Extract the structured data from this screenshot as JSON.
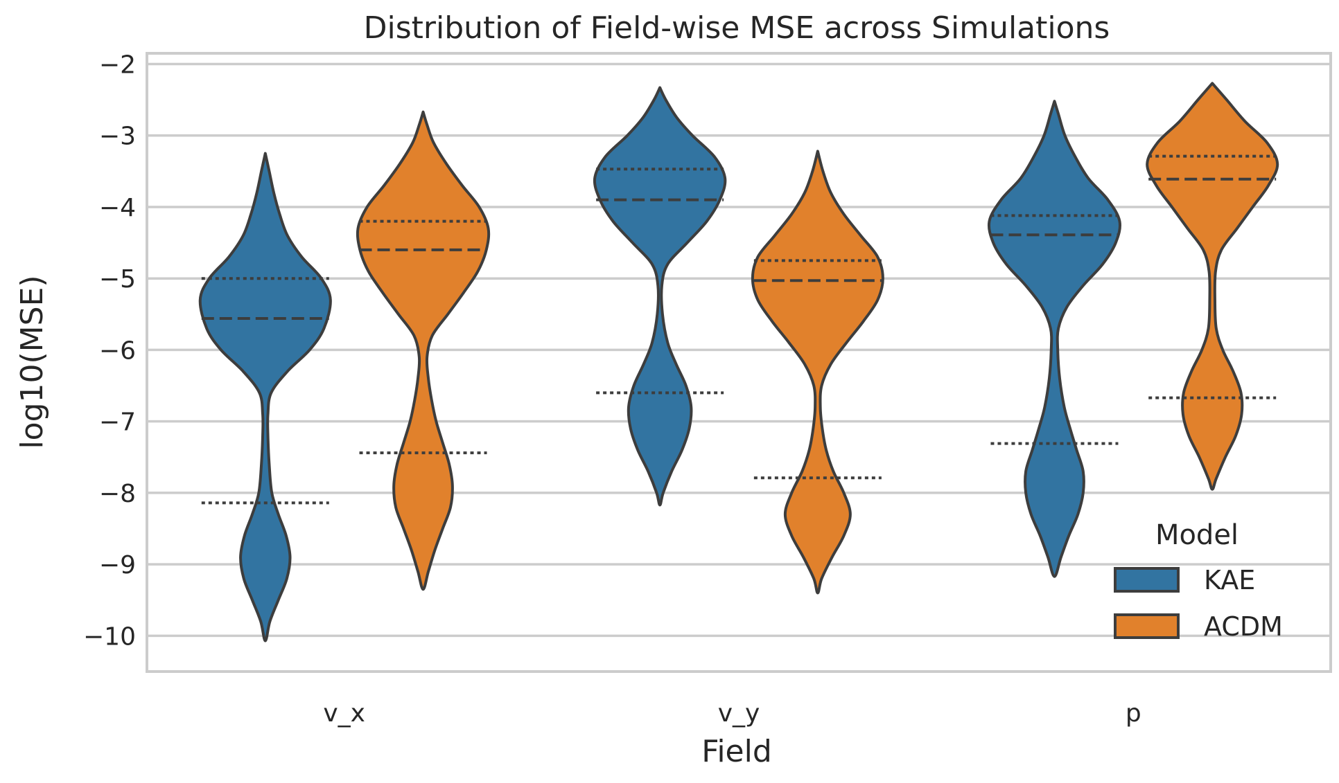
{
  "chart_data": {
    "type": "violin",
    "title": "Distribution of Field-wise MSE across Simulations",
    "xlabel": "Field",
    "ylabel": "log10(MSE)",
    "categories": [
      "v_x",
      "v_y",
      "p"
    ],
    "ylim": [
      -10.5,
      -1.85
    ],
    "yticks": [
      -10,
      -9,
      -8,
      -7,
      -6,
      -5,
      -4,
      -3,
      -2
    ],
    "ytick_labels": [
      "−10",
      "−9",
      "−8",
      "−7",
      "−6",
      "−5",
      "−4",
      "−3",
      "−2"
    ],
    "legend": {
      "title": "Model",
      "position": "lower right"
    },
    "series": [
      {
        "name": "KAE",
        "color": "#3274a1",
        "violins": [
          {
            "category": "v_x",
            "min": -10.07,
            "max": -3.25,
            "quartiles": {
              "q1": -8.14,
              "median": -5.56,
              "q3": -5.0
            },
            "density": [
              [
                -10.07,
                0.0
              ],
              [
                -9.8,
                0.07
              ],
              [
                -9.5,
                0.2
              ],
              [
                -9.2,
                0.33
              ],
              [
                -8.9,
                0.38
              ],
              [
                -8.6,
                0.32
              ],
              [
                -8.3,
                0.2
              ],
              [
                -8.0,
                0.1
              ],
              [
                -7.6,
                0.06
              ],
              [
                -7.2,
                0.04
              ],
              [
                -6.9,
                0.04
              ],
              [
                -6.6,
                0.09
              ],
              [
                -6.3,
                0.34
              ],
              [
                -6.0,
                0.68
              ],
              [
                -5.7,
                0.9
              ],
              [
                -5.3,
                1.0
              ],
              [
                -5.0,
                0.86
              ],
              [
                -4.7,
                0.56
              ],
              [
                -4.4,
                0.34
              ],
              [
                -4.1,
                0.22
              ],
              [
                -3.8,
                0.13
              ],
              [
                -3.5,
                0.06
              ],
              [
                -3.25,
                0.0
              ]
            ]
          },
          {
            "category": "v_y",
            "min": -8.17,
            "max": -2.33,
            "quartiles": {
              "q1": -6.6,
              "median": -3.9,
              "q3": -3.47
            },
            "density": [
              [
                -8.17,
                0.0
              ],
              [
                -8.0,
                0.05
              ],
              [
                -7.7,
                0.18
              ],
              [
                -7.4,
                0.34
              ],
              [
                -7.1,
                0.45
              ],
              [
                -6.8,
                0.48
              ],
              [
                -6.5,
                0.4
              ],
              [
                -6.2,
                0.25
              ],
              [
                -5.9,
                0.12
              ],
              [
                -5.5,
                0.04
              ],
              [
                -5.1,
                0.03
              ],
              [
                -4.8,
                0.12
              ],
              [
                -4.5,
                0.42
              ],
              [
                -4.2,
                0.72
              ],
              [
                -3.9,
                0.92
              ],
              [
                -3.6,
                1.0
              ],
              [
                -3.3,
                0.84
              ],
              [
                -3.0,
                0.5
              ],
              [
                -2.75,
                0.26
              ],
              [
                -2.5,
                0.09
              ],
              [
                -2.33,
                0.0
              ]
            ]
          },
          {
            "category": "p",
            "min": -9.17,
            "max": -2.52,
            "quartiles": {
              "q1": -7.31,
              "median": -4.39,
              "q3": -4.12
            },
            "density": [
              [
                -9.17,
                0.0
              ],
              [
                -8.9,
                0.1
              ],
              [
                -8.6,
                0.22
              ],
              [
                -8.3,
                0.36
              ],
              [
                -8.0,
                0.44
              ],
              [
                -7.7,
                0.44
              ],
              [
                -7.4,
                0.34
              ],
              [
                -7.1,
                0.24
              ],
              [
                -6.8,
                0.15
              ],
              [
                -6.4,
                0.08
              ],
              [
                -6.0,
                0.05
              ],
              [
                -5.7,
                0.06
              ],
              [
                -5.4,
                0.19
              ],
              [
                -5.1,
                0.44
              ],
              [
                -4.8,
                0.74
              ],
              [
                -4.5,
                0.94
              ],
              [
                -4.2,
                1.0
              ],
              [
                -3.9,
                0.82
              ],
              [
                -3.6,
                0.52
              ],
              [
                -3.3,
                0.32
              ],
              [
                -3.0,
                0.16
              ],
              [
                -2.7,
                0.06
              ],
              [
                -2.52,
                0.0
              ]
            ]
          }
        ]
      },
      {
        "name": "ACDM",
        "color": "#e1812c",
        "violins": [
          {
            "category": "v_x",
            "min": -9.35,
            "max": -2.67,
            "quartiles": {
              "q1": -7.44,
              "median": -4.6,
              "q3": -4.2
            },
            "density": [
              [
                -9.35,
                0.0
              ],
              [
                -9.1,
                0.08
              ],
              [
                -8.8,
                0.18
              ],
              [
                -8.5,
                0.3
              ],
              [
                -8.2,
                0.42
              ],
              [
                -7.9,
                0.45
              ],
              [
                -7.6,
                0.4
              ],
              [
                -7.3,
                0.3
              ],
              [
                -7.0,
                0.2
              ],
              [
                -6.7,
                0.13
              ],
              [
                -6.4,
                0.08
              ],
              [
                -6.1,
                0.06
              ],
              [
                -5.8,
                0.14
              ],
              [
                -5.5,
                0.38
              ],
              [
                -5.2,
                0.62
              ],
              [
                -4.9,
                0.84
              ],
              [
                -4.6,
                0.97
              ],
              [
                -4.3,
                1.0
              ],
              [
                -4.0,
                0.86
              ],
              [
                -3.7,
                0.6
              ],
              [
                -3.4,
                0.36
              ],
              [
                -3.1,
                0.16
              ],
              [
                -2.85,
                0.06
              ],
              [
                -2.67,
                0.0
              ]
            ]
          },
          {
            "category": "v_y",
            "min": -9.4,
            "max": -3.22,
            "quartiles": {
              "q1": -7.79,
              "median": -5.03,
              "q3": -4.75
            },
            "density": [
              [
                -9.4,
                0.0
              ],
              [
                -9.2,
                0.06
              ],
              [
                -8.9,
                0.22
              ],
              [
                -8.6,
                0.4
              ],
              [
                -8.3,
                0.5
              ],
              [
                -8.0,
                0.4
              ],
              [
                -7.7,
                0.24
              ],
              [
                -7.4,
                0.13
              ],
              [
                -7.1,
                0.07
              ],
              [
                -6.8,
                0.04
              ],
              [
                -6.5,
                0.06
              ],
              [
                -6.2,
                0.2
              ],
              [
                -5.9,
                0.44
              ],
              [
                -5.6,
                0.7
              ],
              [
                -5.3,
                0.92
              ],
              [
                -5.0,
                1.0
              ],
              [
                -4.7,
                0.92
              ],
              [
                -4.4,
                0.66
              ],
              [
                -4.1,
                0.4
              ],
              [
                -3.8,
                0.2
              ],
              [
                -3.5,
                0.08
              ],
              [
                -3.22,
                0.0
              ]
            ]
          },
          {
            "category": "p",
            "min": -7.95,
            "max": -2.27,
            "quartiles": {
              "q1": -6.67,
              "median": -3.61,
              "q3": -3.29
            },
            "density": [
              [
                -7.95,
                0.0
              ],
              [
                -7.8,
                0.06
              ],
              [
                -7.5,
                0.2
              ],
              [
                -7.2,
                0.36
              ],
              [
                -6.9,
                0.45
              ],
              [
                -6.6,
                0.44
              ],
              [
                -6.3,
                0.32
              ],
              [
                -6.0,
                0.16
              ],
              [
                -5.7,
                0.06
              ],
              [
                -5.3,
                0.04
              ],
              [
                -4.9,
                0.05
              ],
              [
                -4.6,
                0.14
              ],
              [
                -4.3,
                0.38
              ],
              [
                -4.0,
                0.62
              ],
              [
                -3.7,
                0.86
              ],
              [
                -3.4,
                1.0
              ],
              [
                -3.1,
                0.84
              ],
              [
                -2.8,
                0.5
              ],
              [
                -2.5,
                0.22
              ],
              [
                -2.27,
                0.0
              ]
            ]
          }
        ]
      }
    ]
  }
}
